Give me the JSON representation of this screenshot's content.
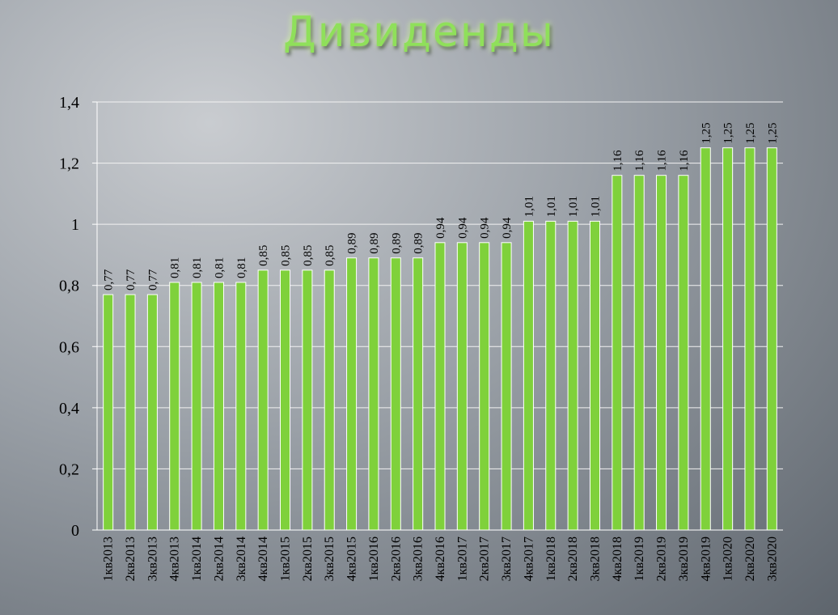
{
  "chart_data": {
    "type": "bar",
    "title": "Дивиденды",
    "categories": [
      "1кв2013",
      "2кв2013",
      "3кв2013",
      "4кв2013",
      "1кв2014",
      "2кв2014",
      "3кв2014",
      "4кв2014",
      "1кв2015",
      "2кв2015",
      "3кв2015",
      "4кв2015",
      "1кв2016",
      "2кв2016",
      "3кв2016",
      "4кв2016",
      "1кв2017",
      "2кв2017",
      "3кв2017",
      "4кв2017",
      "1кв2018",
      "2кв2018",
      "3кв2018",
      "4кв2018",
      "1кв2019",
      "2кв2019",
      "3кв2019",
      "4кв2019",
      "1кв2020",
      "2кв2020",
      "3кв2020"
    ],
    "values": [
      0.77,
      0.77,
      0.77,
      0.81,
      0.81,
      0.81,
      0.81,
      0.85,
      0.85,
      0.85,
      0.85,
      0.89,
      0.89,
      0.89,
      0.89,
      0.94,
      0.94,
      0.94,
      0.94,
      1.01,
      1.01,
      1.01,
      1.01,
      1.16,
      1.16,
      1.16,
      1.16,
      1.25,
      1.25,
      1.25,
      1.25
    ],
    "value_labels": [
      "0,77",
      "0,77",
      "0,77",
      "0,81",
      "0,81",
      "0,81",
      "0,81",
      "0,85",
      "0,85",
      "0,85",
      "0,85",
      "0,89",
      "0,89",
      "0,89",
      "0,89",
      "0,94",
      "0,94",
      "0,94",
      "0,94",
      "1,01",
      "1,01",
      "1,01",
      "1,01",
      "1,16",
      "1,16",
      "1,16",
      "1,16",
      "1,25",
      "1,25",
      "1,25",
      "1,25"
    ],
    "color": "#7fd13b",
    "ylim": [
      0,
      1.4
    ],
    "yticks": [
      0,
      {
        "value": 0.2,
        "label": "0,2"
      },
      {
        "value": 0.4,
        "label": "0,4"
      },
      {
        "value": 0.6,
        "label": "0,6"
      },
      {
        "value": 0.8,
        "label": "0,8"
      },
      1,
      {
        "value": 1.2,
        "label": "1,2"
      },
      {
        "value": 1.4,
        "label": "1,4"
      }
    ],
    "grid": true
  }
}
